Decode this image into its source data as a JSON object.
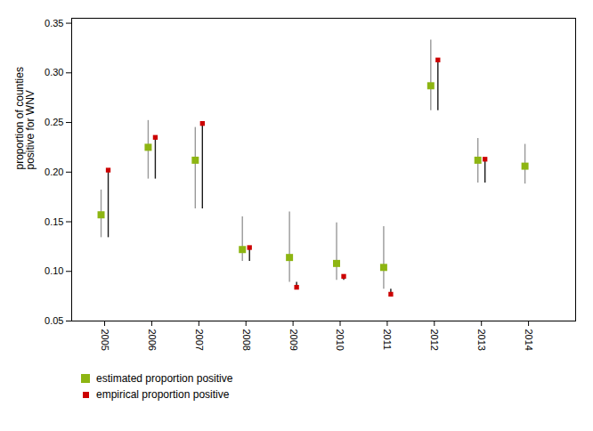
{
  "chart_data": {
    "type": "scatter",
    "x": [
      2005,
      2006,
      2007,
      2008,
      2009,
      2010,
      2011,
      2012,
      2013,
      2014
    ],
    "series": [
      {
        "name": "estimated proportion positive",
        "color": "#8DB512",
        "marker": "square",
        "values": [
          0.157,
          0.225,
          0.212,
          0.122,
          0.114,
          0.108,
          0.104,
          0.287,
          0.212,
          0.206
        ],
        "error_low": [
          0.134,
          0.193,
          0.163,
          0.11,
          0.089,
          0.091,
          0.082,
          0.262,
          0.189,
          0.188
        ],
        "error_high": [
          0.182,
          0.252,
          0.245,
          0.155,
          0.16,
          0.149,
          0.145,
          0.333,
          0.234,
          0.228
        ],
        "error_bar_color": "#999999"
      },
      {
        "name": "empirical proportion positive",
        "color": "#CC0000",
        "marker": "square",
        "values": [
          0.202,
          0.235,
          0.249,
          0.124,
          0.084,
          0.095,
          0.077,
          0.313,
          0.213,
          null
        ],
        "error_low": [
          0.134,
          0.193,
          0.163,
          0.11,
          0.089,
          0.091,
          0.082,
          0.262,
          0.189,
          null
        ],
        "error_bar_color": "#1a1a1a"
      }
    ],
    "ylabel": "proportion of counties\npositive for WNV",
    "xlim": [
      2004.3,
      2015.0
    ],
    "xticks": [
      2005,
      2006,
      2007,
      2008,
      2009,
      2010,
      2011,
      2012,
      2013,
      2014
    ],
    "ylim": [
      0.05,
      0.355
    ],
    "yticks": [
      0.05,
      {
        "value": 0.1,
        "label": "0.10"
      },
      0.15,
      {
        "value": 0.2,
        "label": "0.20"
      },
      0.25,
      {
        "value": 0.3,
        "label": "0.30"
      },
      0.35
    ],
    "grid": false,
    "legend": "lower left"
  }
}
